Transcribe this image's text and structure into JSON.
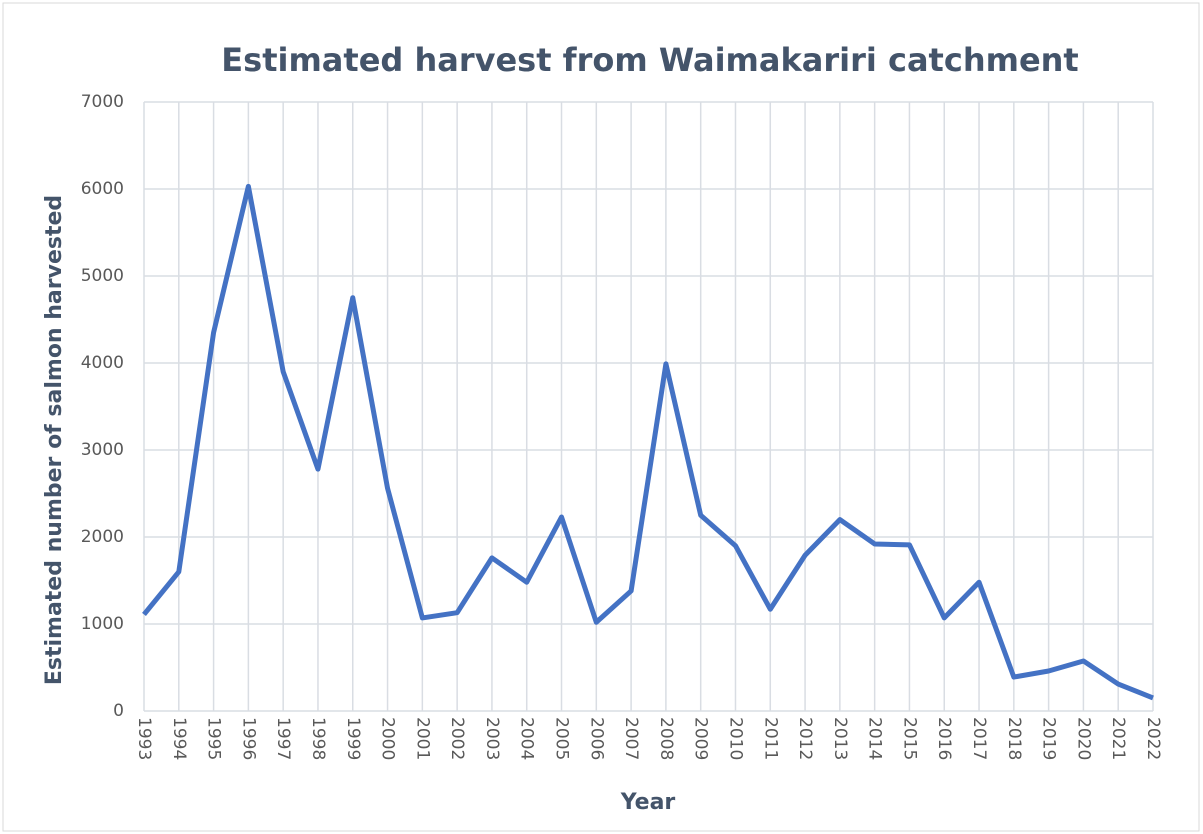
{
  "chart_data": {
    "type": "line",
    "title": "Estimated harvest from Waimakariri catchment",
    "x_label": "Year",
    "y_label": "Estimated number of salmon harvested",
    "categories": [
      "1993",
      "1994",
      "1995",
      "1996",
      "1997",
      "1998",
      "1999",
      "2000",
      "2001",
      "2002",
      "2003",
      "2004",
      "2005",
      "2006",
      "2007",
      "2008",
      "2009",
      "2010",
      "2011",
      "2012",
      "2013",
      "2014",
      "2015",
      "2016",
      "2017",
      "2018",
      "2019",
      "2020",
      "2021",
      "2022"
    ],
    "series": [
      {
        "name": "Estimated harvest",
        "color": "#4472c4",
        "values": [
          1110,
          1600,
          4350,
          6030,
          3900,
          2780,
          4750,
          2560,
          1070,
          1130,
          1760,
          1480,
          2230,
          1020,
          1380,
          3990,
          2250,
          1900,
          1170,
          1790,
          2200,
          1920,
          1910,
          1070,
          1480,
          390,
          460,
          575,
          310,
          150
        ]
      }
    ],
    "ylim": [
      0,
      7000
    ],
    "yticks": [
      0,
      1000,
      2000,
      3000,
      4000,
      5000,
      6000,
      7000
    ],
    "grid": true
  }
}
